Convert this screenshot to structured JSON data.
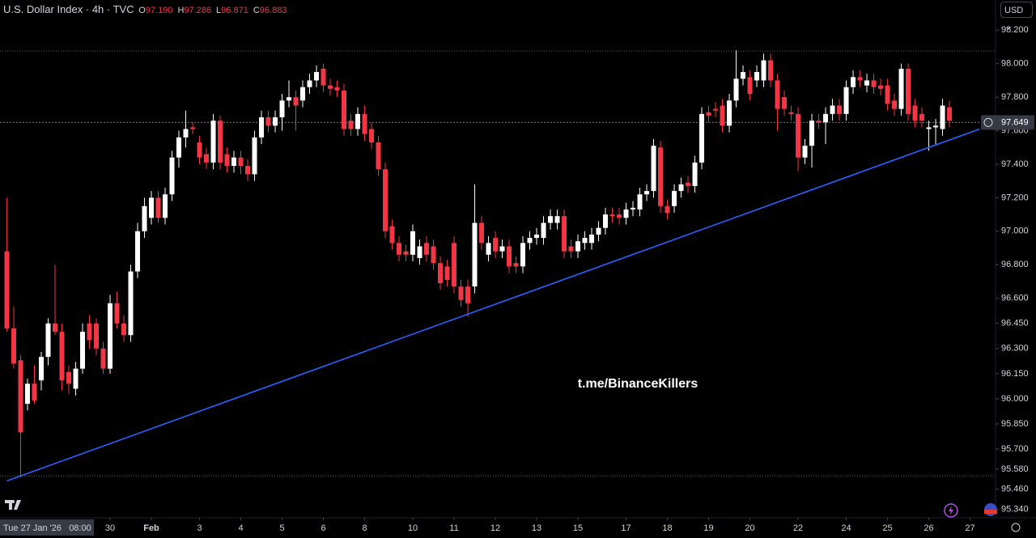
{
  "chart_data": {
    "type": "candlestick",
    "title": "U.S. Dollar Index · 4h · TVC",
    "ohlc_legend": [
      {
        "label": "O",
        "value": "97.190"
      },
      {
        "label": "H",
        "value": "97.286"
      },
      {
        "label": "L",
        "value": "96.871"
      },
      {
        "label": "C",
        "value": "96.883"
      }
    ],
    "currency": "USD",
    "watermark": "t.me/BinanceKillers",
    "crosshair_label": "Tue 27 Jan '26   08:00",
    "up_color": "#ffffff",
    "down_color": "#f23645",
    "ylim": [
      95.29,
      98.38
    ],
    "xlim": [
      -1,
      143.7
    ],
    "yticks": [
      {
        "value": 98.2,
        "label": "98.200"
      },
      {
        "value": 98.0,
        "label": "98.000"
      },
      {
        "value": 97.8,
        "label": "97.800"
      },
      {
        "value": 97.6,
        "label": "97.600"
      },
      {
        "value": 97.4,
        "label": "97.400"
      },
      {
        "value": 97.2,
        "label": "97.200"
      },
      {
        "value": 97.0,
        "label": "97.000"
      },
      {
        "value": 96.8,
        "label": "96.800"
      },
      {
        "value": 96.6,
        "label": "96.600"
      },
      {
        "value": 96.45,
        "label": "96.450"
      },
      {
        "value": 96.3,
        "label": "96.300"
      },
      {
        "value": 96.15,
        "label": "96.150"
      },
      {
        "value": 96.0,
        "label": "96.000"
      },
      {
        "value": 95.85,
        "label": "95.850"
      },
      {
        "value": 95.7,
        "label": "95.700"
      },
      {
        "value": 95.58,
        "label": "95.580"
      },
      {
        "value": 95.46,
        "label": "95.460"
      },
      {
        "value": 95.34,
        "label": "95.340"
      }
    ],
    "xticks": [
      {
        "value": 15,
        "label": "30"
      },
      {
        "value": 21,
        "label": "Feb"
      },
      {
        "value": 28,
        "label": "3"
      },
      {
        "value": 34,
        "label": "4"
      },
      {
        "value": 40,
        "label": "5"
      },
      {
        "value": 46,
        "label": "6"
      },
      {
        "value": 52,
        "label": "8"
      },
      {
        "value": 59,
        "label": "10"
      },
      {
        "value": 65,
        "label": "11"
      },
      {
        "value": 71,
        "label": "12"
      },
      {
        "value": 77,
        "label": "13"
      },
      {
        "value": 83,
        "label": "15"
      },
      {
        "value": 90,
        "label": "17"
      },
      {
        "value": 96,
        "label": "18"
      },
      {
        "value": 102,
        "label": "19"
      },
      {
        "value": 108,
        "label": "20"
      },
      {
        "value": 115,
        "label": "22"
      },
      {
        "value": 122,
        "label": "24"
      },
      {
        "value": 128,
        "label": "25"
      },
      {
        "value": 134,
        "label": "26"
      },
      {
        "value": 140,
        "label": "27"
      }
    ],
    "last_price": {
      "value": 97.649,
      "label": "97.649"
    },
    "range_lines": [
      98.075,
      95.54
    ],
    "trendline": {
      "x": [
        0,
        141.4
      ],
      "y": [
        95.51,
        97.61
      ],
      "color": "#2962ff"
    },
    "candles": [
      [
        96.88,
        97.2,
        96.4,
        96.42
      ],
      [
        96.42,
        96.55,
        96.18,
        96.21
      ],
      [
        96.23,
        96.26,
        95.53,
        95.8
      ],
      [
        95.97,
        96.12,
        95.93,
        96.09
      ],
      [
        96.09,
        96.2,
        95.97,
        95.99
      ],
      [
        96.11,
        96.28,
        96.05,
        96.25
      ],
      [
        96.25,
        96.48,
        96.2,
        96.45
      ],
      [
        96.45,
        96.8,
        96.38,
        96.4
      ],
      [
        96.4,
        96.45,
        96.05,
        96.11
      ],
      [
        96.16,
        96.2,
        96.03,
        96.09
      ],
      [
        96.06,
        96.22,
        96.02,
        96.18
      ],
      [
        96.18,
        96.45,
        96.15,
        96.4
      ],
      [
        96.45,
        96.5,
        96.3,
        96.35
      ],
      [
        96.45,
        96.48,
        96.26,
        96.3
      ],
      [
        96.3,
        96.34,
        96.15,
        96.18
      ],
      [
        96.18,
        96.62,
        96.15,
        96.57
      ],
      [
        96.57,
        96.64,
        96.42,
        96.45
      ],
      [
        96.45,
        96.5,
        96.34,
        96.38
      ],
      [
        96.38,
        96.8,
        96.34,
        96.76
      ],
      [
        96.76,
        97.05,
        96.72,
        97.0
      ],
      [
        97.0,
        97.2,
        96.96,
        97.15
      ],
      [
        97.08,
        97.24,
        97.04,
        97.2
      ],
      [
        97.2,
        97.24,
        97.05,
        97.08
      ],
      [
        97.08,
        97.26,
        97.04,
        97.22
      ],
      [
        97.22,
        97.48,
        97.18,
        97.44
      ],
      [
        97.44,
        97.6,
        97.38,
        97.56
      ],
      [
        97.56,
        97.72,
        97.5,
        97.61
      ],
      [
        97.62,
        97.65,
        97.58,
        97.61
      ],
      [
        97.53,
        97.57,
        97.4,
        97.44
      ],
      [
        97.46,
        97.5,
        97.37,
        97.41
      ],
      [
        97.41,
        97.7,
        97.37,
        97.66
      ],
      [
        97.66,
        97.69,
        97.37,
        97.41
      ],
      [
        97.46,
        97.5,
        97.35,
        97.39
      ],
      [
        97.39,
        97.48,
        97.35,
        97.44
      ],
      [
        97.44,
        97.48,
        97.34,
        97.39
      ],
      [
        97.39,
        97.43,
        97.3,
        97.34
      ],
      [
        97.34,
        97.6,
        97.3,
        97.56
      ],
      [
        97.56,
        97.72,
        97.52,
        97.68
      ],
      [
        97.68,
        97.72,
        97.59,
        97.63
      ],
      [
        97.63,
        97.72,
        97.59,
        97.68
      ],
      [
        97.68,
        97.82,
        97.6,
        97.78
      ],
      [
        97.78,
        97.9,
        97.74,
        97.8
      ],
      [
        97.8,
        97.84,
        97.6,
        97.75
      ],
      [
        97.78,
        97.9,
        97.74,
        97.86
      ],
      [
        97.86,
        97.94,
        97.82,
        97.9
      ],
      [
        97.9,
        97.99,
        97.86,
        97.95
      ],
      [
        97.97,
        98.0,
        97.83,
        97.87
      ],
      [
        97.87,
        97.91,
        97.81,
        97.85
      ],
      [
        97.86,
        97.9,
        97.8,
        97.84
      ],
      [
        97.84,
        97.88,
        97.57,
        97.61
      ],
      [
        97.66,
        97.7,
        97.57,
        97.61
      ],
      [
        97.61,
        97.74,
        97.57,
        97.7
      ],
      [
        97.7,
        97.75,
        97.54,
        97.58
      ],
      [
        97.61,
        97.65,
        97.49,
        97.53
      ],
      [
        97.53,
        97.57,
        97.33,
        97.37
      ],
      [
        97.37,
        97.41,
        96.96,
        97.0
      ],
      [
        97.03,
        97.07,
        96.89,
        96.93
      ],
      [
        96.93,
        96.97,
        96.82,
        96.86
      ],
      [
        96.88,
        96.92,
        96.82,
        96.86
      ],
      [
        96.86,
        97.04,
        96.82,
        97.0
      ],
      [
        96.84,
        96.95,
        96.8,
        96.91
      ],
      [
        96.93,
        96.97,
        96.82,
        96.86
      ],
      [
        96.91,
        96.95,
        96.77,
        96.81
      ],
      [
        96.81,
        96.85,
        96.65,
        96.69
      ],
      [
        96.79,
        96.83,
        96.67,
        96.71
      ],
      [
        96.93,
        96.97,
        96.63,
        96.67
      ],
      [
        96.67,
        96.71,
        96.55,
        96.59
      ],
      [
        96.67,
        96.71,
        96.49,
        96.57
      ],
      [
        96.67,
        97.28,
        96.63,
        97.05
      ],
      [
        97.05,
        97.09,
        96.89,
        96.93
      ],
      [
        96.86,
        96.97,
        96.82,
        96.93
      ],
      [
        96.96,
        97.0,
        96.84,
        96.88
      ],
      [
        96.88,
        96.95,
        96.84,
        96.91
      ],
      [
        96.91,
        96.95,
        96.75,
        96.79
      ],
      [
        96.81,
        96.85,
        96.75,
        96.79
      ],
      [
        96.79,
        96.97,
        96.75,
        96.93
      ],
      [
        96.93,
        97.0,
        96.89,
        96.96
      ],
      [
        96.96,
        97.02,
        96.92,
        96.98
      ],
      [
        96.96,
        97.09,
        96.92,
        97.05
      ],
      [
        97.05,
        97.13,
        97.01,
        97.09
      ],
      [
        97.05,
        97.13,
        97.01,
        97.09
      ],
      [
        97.09,
        97.13,
        96.84,
        96.88
      ],
      [
        96.91,
        96.95,
        96.84,
        96.88
      ],
      [
        96.88,
        96.98,
        96.84,
        96.94
      ],
      [
        96.93,
        97.0,
        96.89,
        96.96
      ],
      [
        96.93,
        97.02,
        96.89,
        96.98
      ],
      [
        96.98,
        97.06,
        96.94,
        97.02
      ],
      [
        97.02,
        97.14,
        96.98,
        97.1
      ],
      [
        97.1,
        97.14,
        97.05,
        97.09
      ],
      [
        97.1,
        97.14,
        97.04,
        97.08
      ],
      [
        97.08,
        97.17,
        97.04,
        97.13
      ],
      [
        97.13,
        97.18,
        97.09,
        97.14
      ],
      [
        97.13,
        97.26,
        97.09,
        97.22
      ],
      [
        97.22,
        97.28,
        97.18,
        97.24
      ],
      [
        97.24,
        97.55,
        97.2,
        97.51
      ],
      [
        97.5,
        97.54,
        97.11,
        97.15
      ],
      [
        97.15,
        97.19,
        97.07,
        97.11
      ],
      [
        97.15,
        97.28,
        97.11,
        97.24
      ],
      [
        97.24,
        97.32,
        97.2,
        97.28
      ],
      [
        97.29,
        97.33,
        97.23,
        97.27
      ],
      [
        97.27,
        97.45,
        97.23,
        97.41
      ],
      [
        97.41,
        97.74,
        97.37,
        97.7
      ],
      [
        97.71,
        97.75,
        97.65,
        97.69
      ],
      [
        97.73,
        97.77,
        97.68,
        97.72
      ],
      [
        97.75,
        97.79,
        97.59,
        97.63
      ],
      [
        97.63,
        97.82,
        97.59,
        97.78
      ],
      [
        97.78,
        98.08,
        97.74,
        97.91
      ],
      [
        97.91,
        97.99,
        97.87,
        97.95
      ],
      [
        97.92,
        97.96,
        97.78,
        97.82
      ],
      [
        97.9,
        97.99,
        97.86,
        97.95
      ],
      [
        97.9,
        98.06,
        97.86,
        98.02
      ],
      [
        98.02,
        98.06,
        97.86,
        97.9
      ],
      [
        97.9,
        97.94,
        97.6,
        97.73
      ],
      [
        97.8,
        97.84,
        97.69,
        97.73
      ],
      [
        97.71,
        97.75,
        97.66,
        97.7
      ],
      [
        97.7,
        97.74,
        97.36,
        97.44
      ],
      [
        97.44,
        97.55,
        97.4,
        97.51
      ],
      [
        97.51,
        97.7,
        97.38,
        97.66
      ],
      [
        97.66,
        97.7,
        97.61,
        97.65
      ],
      [
        97.65,
        97.74,
        97.52,
        97.7
      ],
      [
        97.7,
        97.79,
        97.66,
        97.75
      ],
      [
        97.75,
        97.79,
        97.66,
        97.7
      ],
      [
        97.7,
        97.9,
        97.66,
        97.86
      ],
      [
        97.86,
        97.96,
        97.82,
        97.92
      ],
      [
        97.92,
        97.96,
        97.86,
        97.9
      ],
      [
        97.87,
        97.94,
        97.83,
        97.9
      ],
      [
        97.9,
        97.94,
        97.82,
        97.86
      ],
      [
        97.87,
        97.91,
        97.81,
        97.85
      ],
      [
        97.87,
        97.91,
        97.72,
        97.76
      ],
      [
        97.78,
        97.82,
        97.69,
        97.73
      ],
      [
        97.73,
        98.0,
        97.69,
        97.97
      ],
      [
        97.97,
        98.0,
        97.66,
        97.7
      ],
      [
        97.75,
        97.79,
        97.62,
        97.66
      ],
      [
        97.7,
        97.74,
        97.62,
        97.66
      ],
      [
        97.61,
        97.66,
        97.48,
        97.62
      ],
      [
        97.62,
        97.67,
        97.52,
        97.63
      ],
      [
        97.61,
        97.79,
        97.57,
        97.75
      ],
      [
        97.74,
        97.78,
        97.62,
        97.66
      ]
    ]
  }
}
